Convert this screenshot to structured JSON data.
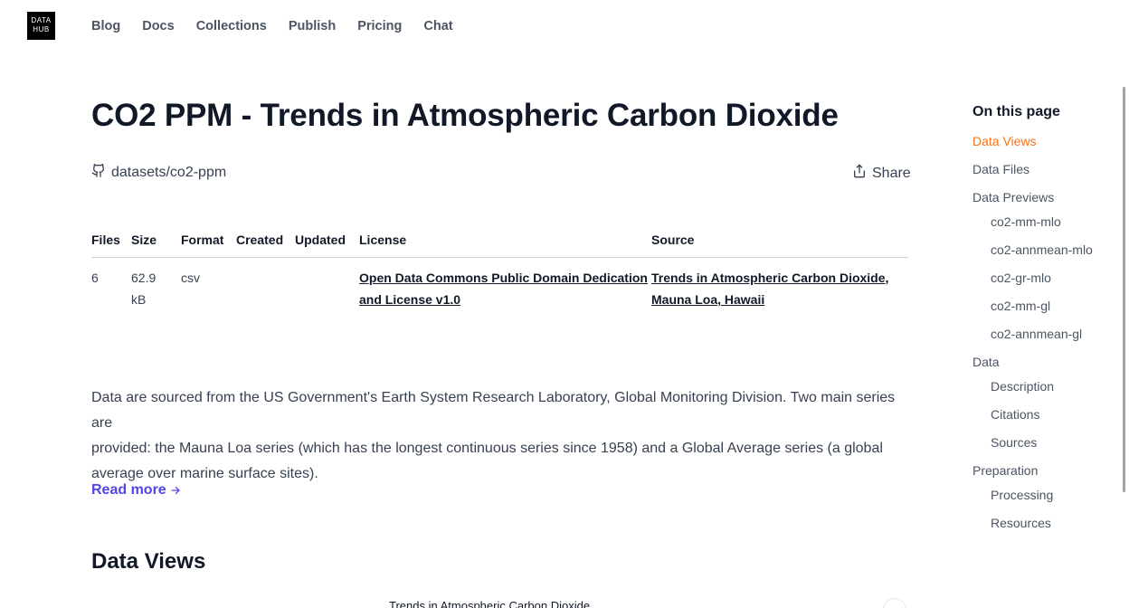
{
  "logo": {
    "line1": "DATA",
    "line2": "HUB"
  },
  "nav": [
    "Blog",
    "Docs",
    "Collections",
    "Publish",
    "Pricing",
    "Chat"
  ],
  "page": {
    "title": "CO2 PPM - Trends in Atmospheric Carbon Dioxide",
    "repo": "datasets/co2-ppm",
    "share": "Share"
  },
  "meta": {
    "headers": {
      "files": "Files",
      "size": "Size",
      "format": "Format",
      "created": "Created",
      "updated": "Updated",
      "license": "License",
      "source": "Source"
    },
    "row": {
      "files": "6",
      "size_line1": "62.9",
      "size_line2": "kB",
      "format": "csv",
      "created": "",
      "updated": "",
      "license_line1": "Open Data Commons Public Domain Dedication",
      "license_line2": "and License v1.0",
      "source_line1": "Trends in Atmospheric Carbon Dioxide,",
      "source_line2": "Mauna Loa, Hawaii"
    }
  },
  "description": {
    "line1": "Data are sourced from the US Government's Earth System Research Laboratory, Global Monitoring Division. Two main series are",
    "line2": "provided: the Mauna Loa series (which has the longest continuous series since 1958) and a Global Average series (a global",
    "line3": "average over marine surface sites)."
  },
  "read_more": "Read more",
  "data_views": {
    "heading": "Data Views",
    "chart_title": "Trends in Atmospheric Carbon Dioxide"
  },
  "toc": {
    "heading": "On this page",
    "items": [
      {
        "label": "Data Views",
        "level": 1,
        "active": true
      },
      {
        "label": "Data Files",
        "level": 1
      },
      {
        "label": "Data Previews",
        "level": 1
      },
      {
        "label": "co2-mm-mlo",
        "level": 2
      },
      {
        "label": "co2-annmean-mlo",
        "level": 2
      },
      {
        "label": "co2-gr-mlo",
        "level": 2
      },
      {
        "label": "co2-mm-gl",
        "level": 2
      },
      {
        "label": "co2-annmean-gl",
        "level": 2
      },
      {
        "label": "Data",
        "level": 1
      },
      {
        "label": "Description",
        "level": 2
      },
      {
        "label": "Citations",
        "level": 2
      },
      {
        "label": "Sources",
        "level": 2
      },
      {
        "label": "Preparation",
        "level": 1
      },
      {
        "label": "Processing",
        "level": 2
      },
      {
        "label": "Resources",
        "level": 2
      }
    ]
  },
  "colors": {
    "accent": "#4f46e5",
    "toc_active": "#f97316",
    "text": "#374151",
    "heading": "#111827"
  },
  "icons": {
    "repo": "github-icon",
    "share": "share-icon",
    "read_more": "arrow-right-icon"
  }
}
